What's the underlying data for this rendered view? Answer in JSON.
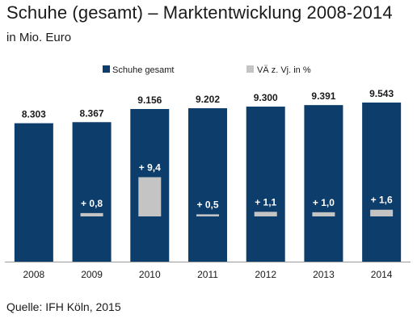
{
  "header": {
    "title": "Schuhe (gesamt) – Marktentwicklung 2008-2014",
    "subtitle": "in Mio. Euro"
  },
  "footer": {
    "source": "Quelle: IFH Köln, 2015"
  },
  "colors": {
    "primary_bar": "#0d3d6b",
    "change_bar": "#c4c4c4",
    "text": "#1a1a1a",
    "inner_label": "#ffffff"
  },
  "chart_data": {
    "type": "bar",
    "title": "Schuhe (gesamt) – Marktentwicklung 2008-2014",
    "subtitle": "in Mio. Euro",
    "xlabel": "",
    "ylabel": "",
    "grid": false,
    "legend_position": "top-right",
    "categories": [
      "2008",
      "2009",
      "2010",
      "2011",
      "2012",
      "2013",
      "2014"
    ],
    "ylim": [
      0,
      9543
    ],
    "change_ylim": [
      0,
      12
    ],
    "series": [
      {
        "name": "Schuhe gesamt",
        "values": [
          8303,
          8367,
          9156,
          9202,
          9300,
          9391,
          9543
        ],
        "labels": [
          "8.303",
          "8.367",
          "9.156",
          "9.202",
          "9.300",
          "9.391",
          "9.543"
        ]
      },
      {
        "name": "VÄ z. Vj. in %",
        "values": [
          null,
          0.8,
          9.4,
          0.5,
          1.1,
          1.0,
          1.6
        ],
        "labels": [
          "",
          "+ 0,8",
          "+ 9,4",
          "+ 0,5",
          "+ 1,1",
          "+ 1,0",
          "+ 1,6"
        ]
      }
    ]
  }
}
